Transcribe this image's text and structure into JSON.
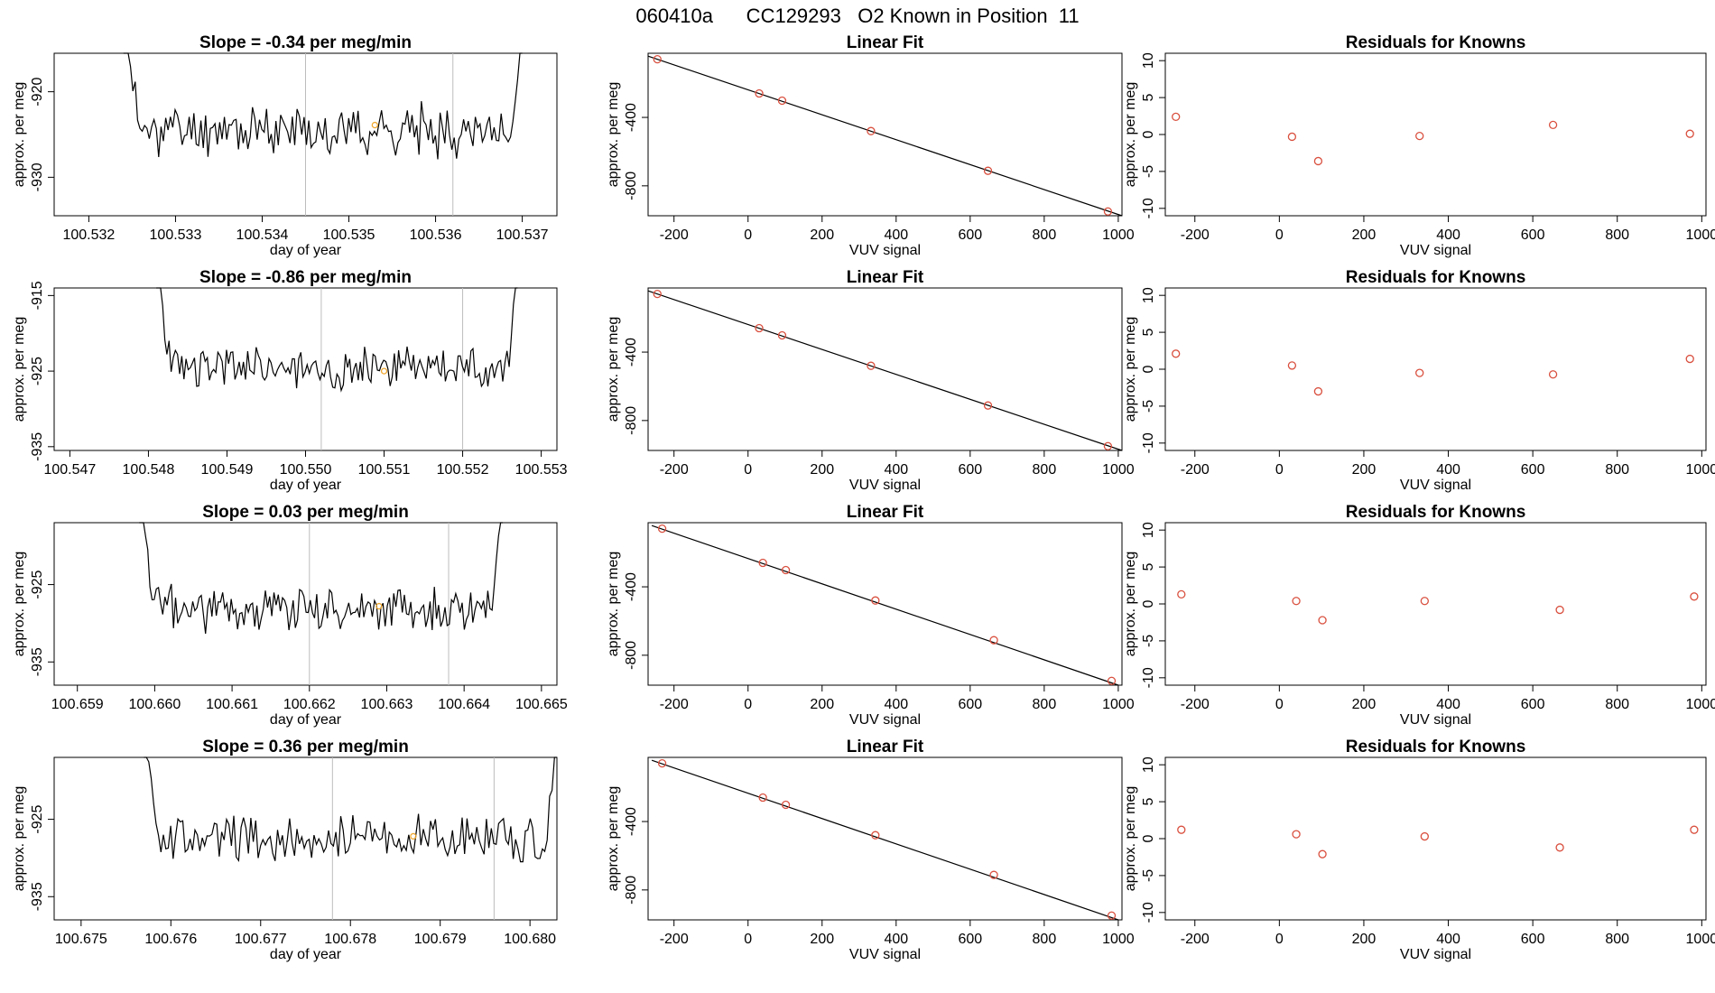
{
  "title": "060410a      CC129293   O2 Known in Position  11",
  "colors": {
    "line": "#000000",
    "vline": "#bdbdbd",
    "fit_point": "#d9503f",
    "resid_point": "#d9503f",
    "mark": "#f0a830",
    "axis": "#000000"
  },
  "chart_data": [
    {
      "type": "line",
      "row": 0,
      "title": "Slope =  -0.34  per meg/min",
      "xlabel": "day of year",
      "ylabel": "approx. per meg",
      "xlim": [
        100.5316,
        100.5374
      ],
      "ylim": [
        -934.5,
        -915.5
      ],
      "xticks": [
        "100.532",
        "100.533",
        "100.534",
        "100.535",
        "100.536",
        "100.537"
      ],
      "yticks": [
        "-920",
        "-930"
      ],
      "xtick_values": [
        100.532,
        100.533,
        100.534,
        100.535,
        100.536,
        100.537
      ],
      "ytick_values": [
        -920,
        -930
      ],
      "series_start": 100.5324,
      "series_end": 100.537,
      "base": -924.5,
      "amp": 2.3,
      "seed": 11,
      "vlines": [
        100.5345,
        100.5362
      ],
      "mark": {
        "x": 100.5353,
        "y": -923.9
      }
    },
    {
      "type": "scatter",
      "row": 0,
      "title": "Linear Fit",
      "xlabel": "VUV signal",
      "ylabel": "approx. per meg",
      "xlim": [
        -270,
        1010
      ],
      "ylim": [
        -975,
        -25
      ],
      "xticks": [
        "-200",
        "0",
        "200",
        "400",
        "600",
        "800",
        "1000"
      ],
      "yticks": [
        "-400",
        "-800"
      ],
      "xtick_values": [
        -200,
        0,
        200,
        400,
        600,
        800,
        1000
      ],
      "ytick_values": [
        -400,
        -800
      ],
      "points": [
        [
          -245,
          -60
        ],
        [
          30,
          -260
        ],
        [
          92,
          -302
        ],
        [
          332,
          -480
        ],
        [
          648,
          -712
        ],
        [
          972,
          -950
        ]
      ],
      "fit_line": [
        [
          -270,
          -42
        ],
        [
          1010,
          -975
        ]
      ]
    },
    {
      "type": "scatter",
      "row": 0,
      "title": "Residuals for Knowns",
      "xlabel": "VUV signal",
      "ylabel": "approx. per meg",
      "xlim": [
        -270,
        1010
      ],
      "ylim": [
        -11,
        11
      ],
      "xticks": [
        "-200",
        "0",
        "200",
        "400",
        "600",
        "800",
        "1000"
      ],
      "yticks": [
        "10",
        "5",
        "0",
        "-5",
        "-10"
      ],
      "xtick_values": [
        -200,
        0,
        200,
        400,
        600,
        800,
        1000
      ],
      "ytick_values": [
        10,
        5,
        0,
        -5,
        -10
      ],
      "points": [
        [
          -245,
          2.4
        ],
        [
          30,
          -0.3
        ],
        [
          92,
          -3.6
        ],
        [
          332,
          -0.2
        ],
        [
          648,
          1.3
        ],
        [
          972,
          0.1
        ]
      ]
    },
    {
      "type": "line",
      "row": 1,
      "title": "Slope =  -0.86  per meg/min",
      "xlabel": "day of year",
      "ylabel": "approx. per meg",
      "xlim": [
        100.5468,
        100.5532
      ],
      "ylim": [
        -935.5,
        -914.0
      ],
      "xticks": [
        "100.547",
        "100.548",
        "100.549",
        "100.550",
        "100.551",
        "100.552",
        "100.553"
      ],
      "yticks": [
        "-915",
        "-925",
        "-935"
      ],
      "xtick_values": [
        100.547,
        100.548,
        100.549,
        100.55,
        100.551,
        100.552,
        100.553
      ],
      "ytick_values": [
        -915,
        -925,
        -935
      ],
      "series_start": 100.5481,
      "series_end": 100.5527,
      "base": -924.5,
      "amp": 2.2,
      "seed": 23,
      "vlines": [
        100.5502,
        100.552
      ],
      "mark": {
        "x": 100.551,
        "y": -925.0
      }
    },
    {
      "type": "scatter",
      "row": 1,
      "title": "Linear Fit",
      "xlabel": "VUV signal",
      "ylabel": "approx. per meg",
      "xlim": [
        -270,
        1010
      ],
      "ylim": [
        -975,
        -25
      ],
      "xticks": [
        "-200",
        "0",
        "200",
        "400",
        "600",
        "800",
        "1000"
      ],
      "yticks": [
        "-400",
        "-800"
      ],
      "xtick_values": [
        -200,
        0,
        200,
        400,
        600,
        800,
        1000
      ],
      "ytick_values": [
        -400,
        -800
      ],
      "points": [
        [
          -245,
          -60
        ],
        [
          30,
          -260
        ],
        [
          92,
          -302
        ],
        [
          332,
          -480
        ],
        [
          648,
          -712
        ],
        [
          972,
          -950
        ]
      ],
      "fit_line": [
        [
          -270,
          -42
        ],
        [
          1010,
          -975
        ]
      ]
    },
    {
      "type": "scatter",
      "row": 1,
      "title": "Residuals for Knowns",
      "xlabel": "VUV signal",
      "ylabel": "approx. per meg",
      "xlim": [
        -270,
        1010
      ],
      "ylim": [
        -11,
        11
      ],
      "xticks": [
        "-200",
        "0",
        "200",
        "400",
        "600",
        "800",
        "1000"
      ],
      "yticks": [
        "10",
        "5",
        "0",
        "-5",
        "-10"
      ],
      "xtick_values": [
        -200,
        0,
        200,
        400,
        600,
        800,
        1000
      ],
      "ytick_values": [
        10,
        5,
        0,
        -5,
        -10
      ],
      "points": [
        [
          -245,
          2.1
        ],
        [
          30,
          0.5
        ],
        [
          92,
          -3.0
        ],
        [
          332,
          -0.5
        ],
        [
          648,
          -0.7
        ],
        [
          972,
          1.4
        ]
      ]
    },
    {
      "type": "line",
      "row": 2,
      "title": "Slope =  0.03  per meg/min",
      "xlabel": "day of year",
      "ylabel": "approx. per meg",
      "xlim": [
        100.6587,
        100.6652
      ],
      "ylim": [
        -938,
        -917
      ],
      "xticks": [
        "100.659",
        "100.660",
        "100.661",
        "100.662",
        "100.663",
        "100.664",
        "100.665"
      ],
      "yticks": [
        "-925",
        "-935"
      ],
      "xtick_values": [
        100.659,
        100.66,
        100.661,
        100.662,
        100.663,
        100.664,
        100.665
      ],
      "ytick_values": [
        -925,
        -935
      ],
      "series_start": 100.6598,
      "series_end": 100.6645,
      "base": -928,
      "amp": 2.4,
      "seed": 37,
      "vlines": [
        100.662,
        100.6638
      ],
      "mark": {
        "x": 100.6629,
        "y": -927.8
      }
    },
    {
      "type": "scatter",
      "row": 2,
      "title": "Linear Fit",
      "xlabel": "VUV signal",
      "ylabel": "approx. per meg",
      "xlim": [
        -270,
        1010
      ],
      "ylim": [
        -975,
        -25
      ],
      "xticks": [
        "-200",
        "0",
        "200",
        "400",
        "600",
        "800",
        "1000"
      ],
      "yticks": [
        "-400",
        "-800"
      ],
      "xtick_values": [
        -200,
        0,
        200,
        400,
        600,
        800,
        1000
      ],
      "ytick_values": [
        -400,
        -800
      ],
      "points": [
        [
          -232,
          -60
        ],
        [
          40,
          -260
        ],
        [
          102,
          -302
        ],
        [
          344,
          -480
        ],
        [
          664,
          -712
        ],
        [
          982,
          -950
        ]
      ],
      "fit_line": [
        [
          -260,
          -42
        ],
        [
          1000,
          -975
        ]
      ]
    },
    {
      "type": "scatter",
      "row": 2,
      "title": "Residuals for Knowns",
      "xlabel": "VUV signal",
      "ylabel": "approx. per meg",
      "xlim": [
        -270,
        1010
      ],
      "ylim": [
        -11,
        11
      ],
      "xticks": [
        "-200",
        "0",
        "200",
        "400",
        "600",
        "800",
        "1000"
      ],
      "yticks": [
        "10",
        "5",
        "0",
        "-5",
        "-10"
      ],
      "xtick_values": [
        -200,
        0,
        200,
        400,
        600,
        800,
        1000
      ],
      "ytick_values": [
        10,
        5,
        0,
        -5,
        -10
      ],
      "points": [
        [
          -232,
          1.3
        ],
        [
          40,
          0.4
        ],
        [
          102,
          -2.2
        ],
        [
          344,
          0.4
        ],
        [
          664,
          -0.8
        ],
        [
          982,
          1.0
        ]
      ]
    },
    {
      "type": "line",
      "row": 3,
      "title": "Slope =  0.36  per meg/min",
      "xlabel": "day of year",
      "ylabel": "approx. per meg",
      "xlim": [
        100.6747,
        100.6803
      ],
      "ylim": [
        -938,
        -917
      ],
      "xticks": [
        "100.675",
        "100.676",
        "100.677",
        "100.678",
        "100.679",
        "100.680"
      ],
      "yticks": [
        "-925",
        "-935"
      ],
      "xtick_values": [
        100.675,
        100.676,
        100.677,
        100.678,
        100.679,
        100.68
      ],
      "ytick_values": [
        -925,
        -935
      ],
      "series_start": 100.6757,
      "series_end": 100.6803,
      "base": -927.5,
      "amp": 2.4,
      "seed": 53,
      "vlines": [
        100.6778,
        100.6796
      ],
      "mark": {
        "x": 100.6787,
        "y": -927.2
      }
    },
    {
      "type": "scatter",
      "row": 3,
      "title": "Linear Fit",
      "xlabel": "VUV signal",
      "ylabel": "approx. per meg",
      "xlim": [
        -270,
        1010
      ],
      "ylim": [
        -975,
        -25
      ],
      "xticks": [
        "-200",
        "0",
        "200",
        "400",
        "600",
        "800",
        "1000"
      ],
      "yticks": [
        "-400",
        "-800"
      ],
      "xtick_values": [
        -200,
        0,
        200,
        400,
        600,
        800,
        1000
      ],
      "ytick_values": [
        -400,
        -800
      ],
      "points": [
        [
          -232,
          -60
        ],
        [
          40,
          -260
        ],
        [
          102,
          -302
        ],
        [
          344,
          -480
        ],
        [
          664,
          -712
        ],
        [
          982,
          -950
        ]
      ],
      "fit_line": [
        [
          -260,
          -42
        ],
        [
          1000,
          -975
        ]
      ]
    },
    {
      "type": "scatter",
      "row": 3,
      "title": "Residuals for Knowns",
      "xlabel": "VUV signal",
      "ylabel": "approx. per meg",
      "xlim": [
        -270,
        1010
      ],
      "ylim": [
        -11,
        11
      ],
      "xticks": [
        "-200",
        "0",
        "200",
        "400",
        "600",
        "800",
        "1000"
      ],
      "yticks": [
        "10",
        "5",
        "0",
        "-5",
        "-10"
      ],
      "xtick_values": [
        -200,
        0,
        200,
        400,
        600,
        800,
        1000
      ],
      "ytick_values": [
        10,
        5,
        0,
        -5,
        -10
      ],
      "points": [
        [
          -232,
          1.2
        ],
        [
          40,
          0.6
        ],
        [
          102,
          -2.1
        ],
        [
          344,
          0.3
        ],
        [
          664,
          -1.2
        ],
        [
          982,
          1.2
        ]
      ]
    }
  ]
}
